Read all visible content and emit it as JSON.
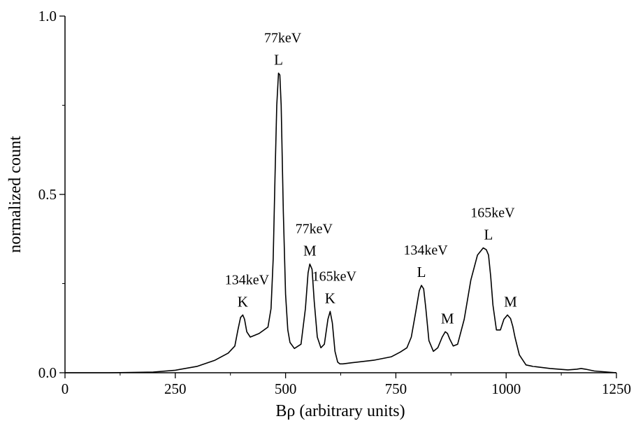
{
  "chart_data": {
    "type": "line",
    "title": "",
    "xlabel": "Bρ (arbitrary units)",
    "ylabel": "normalized count",
    "xlim": [
      0,
      1250
    ],
    "ylim": [
      0,
      1.0
    ],
    "x_ticks": [
      0,
      250,
      500,
      750,
      1000,
      1250
    ],
    "x_tick_labels": [
      "0",
      "250",
      "500",
      "750",
      "1000",
      "1250"
    ],
    "y_ticks": [
      0.0,
      0.5,
      1.0
    ],
    "y_tick_labels": [
      "0.0",
      "0.5",
      "1.0"
    ],
    "grid": false,
    "series": [
      {
        "name": "",
        "color": "#000000",
        "x": [
          0,
          100,
          200,
          250,
          300,
          340,
          370,
          385,
          392,
          398,
          403,
          407,
          412,
          420,
          440,
          460,
          467,
          472,
          476,
          480,
          484,
          487,
          490,
          495,
          500,
          505,
          510,
          520,
          535,
          545,
          551,
          555,
          560,
          565,
          572,
          580,
          588,
          596,
          601,
          606,
          612,
          618,
          623,
          630,
          650,
          700,
          740,
          760,
          775,
          785,
          795,
          803,
          808,
          813,
          818,
          825,
          835,
          845,
          855,
          862,
          867,
          872,
          880,
          890,
          905,
          920,
          935,
          948,
          955,
          960,
          965,
          970,
          978,
          987,
          995,
          1003,
          1010,
          1015,
          1020,
          1030,
          1045,
          1060,
          1100,
          1140,
          1160,
          1170,
          1180,
          1200,
          1250
        ],
        "y": [
          0.0,
          0.0,
          0.002,
          0.007,
          0.018,
          0.035,
          0.055,
          0.075,
          0.12,
          0.155,
          0.162,
          0.15,
          0.115,
          0.1,
          0.11,
          0.128,
          0.18,
          0.32,
          0.55,
          0.75,
          0.84,
          0.835,
          0.75,
          0.45,
          0.22,
          0.12,
          0.085,
          0.068,
          0.08,
          0.18,
          0.28,
          0.305,
          0.29,
          0.2,
          0.1,
          0.07,
          0.08,
          0.15,
          0.172,
          0.14,
          0.06,
          0.03,
          0.025,
          0.025,
          0.028,
          0.035,
          0.045,
          0.058,
          0.07,
          0.1,
          0.17,
          0.23,
          0.245,
          0.235,
          0.18,
          0.09,
          0.06,
          0.07,
          0.1,
          0.115,
          0.11,
          0.095,
          0.075,
          0.08,
          0.15,
          0.26,
          0.33,
          0.35,
          0.345,
          0.33,
          0.27,
          0.19,
          0.12,
          0.12,
          0.15,
          0.162,
          0.152,
          0.13,
          0.1,
          0.05,
          0.022,
          0.018,
          0.012,
          0.008,
          0.01,
          0.012,
          0.01,
          0.005,
          0.0
        ]
      }
    ],
    "annotations": [
      {
        "energy": "77keV",
        "shell": "L",
        "x": 484,
        "y": 0.84
      },
      {
        "energy": "77keV",
        "shell": "M",
        "x": 555,
        "y": 0.305
      },
      {
        "energy": "134keV",
        "shell": "K",
        "x": 403,
        "y": 0.162
      },
      {
        "energy": "165keV",
        "shell": "K",
        "x": 601,
        "y": 0.172
      },
      {
        "energy": "134keV",
        "shell": "L",
        "x": 808,
        "y": 0.245
      },
      {
        "energy": "",
        "shell": "M",
        "x": 867,
        "y": 0.115
      },
      {
        "energy": "165keV",
        "shell": "L",
        "x": 960,
        "y": 0.35
      },
      {
        "energy": "",
        "shell": "M",
        "x": 1010,
        "y": 0.162
      }
    ]
  }
}
